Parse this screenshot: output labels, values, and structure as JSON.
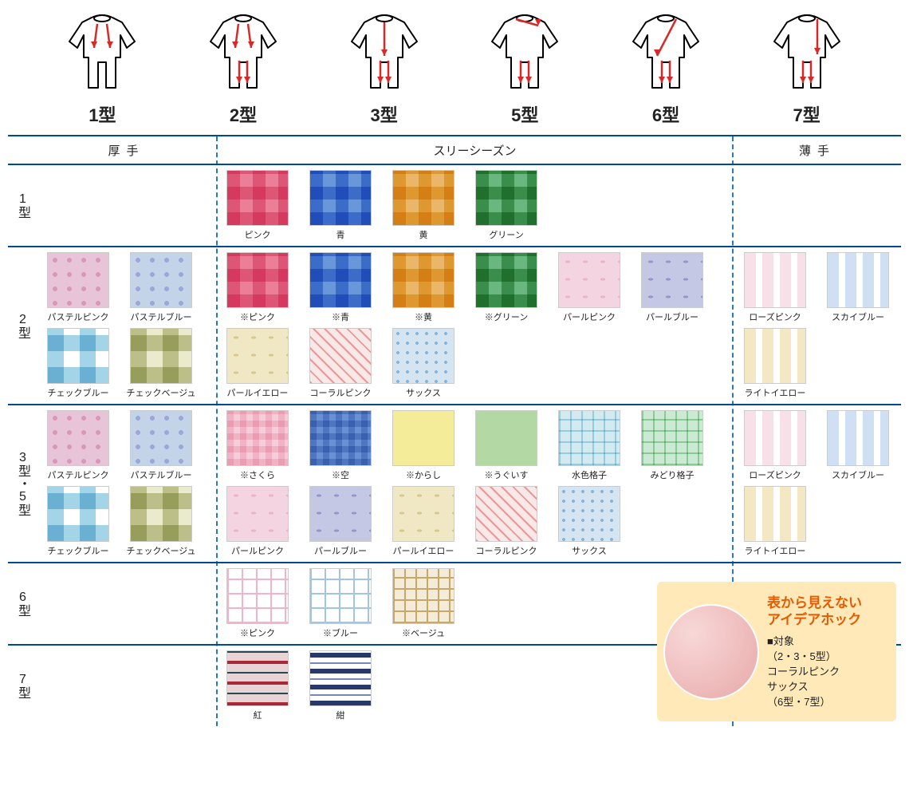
{
  "garment_types": [
    "1型",
    "2型",
    "3型",
    "5型",
    "6型",
    "7型"
  ],
  "headers": {
    "thick": "厚手",
    "three": "スリーシーズン",
    "thin": "薄手"
  },
  "rows": [
    {
      "label": "1型",
      "thick": [],
      "three": [
        {
          "label": "ピンク",
          "cls": "plaid-pink"
        },
        {
          "label": "青",
          "cls": "plaid-blue"
        },
        {
          "label": "黄",
          "cls": "plaid-yellow"
        },
        {
          "label": "グリーン",
          "cls": "plaid-green"
        }
      ],
      "thin": []
    },
    {
      "label": "2型",
      "thick": [
        {
          "label": "パステルピンク",
          "cls": "pastel-pink"
        },
        {
          "label": "パステルブルー",
          "cls": "pastel-blue"
        },
        {
          "label": "チェックブルー",
          "cls": "check-blue"
        },
        {
          "label": "チェックベージュ",
          "cls": "check-beige"
        }
      ],
      "three": [
        {
          "label": "※ピンク",
          "cls": "plaid-pink"
        },
        {
          "label": "※青",
          "cls": "plaid-blue"
        },
        {
          "label": "※黄",
          "cls": "plaid-yellow"
        },
        {
          "label": "※グリーン",
          "cls": "plaid-green"
        },
        {
          "label": "パールピンク",
          "cls": "pearl-pink"
        },
        {
          "label": "パールブルー",
          "cls": "pearl-blue"
        },
        {
          "label": "パールイエロー",
          "cls": "pearl-yellow"
        },
        {
          "label": "コーラルピンク",
          "cls": "coral-pink"
        },
        {
          "label": "サックス",
          "cls": "sax"
        }
      ],
      "thin": [
        {
          "label": "ローズピンク",
          "cls": "rose-pink"
        },
        {
          "label": "スカイブルー",
          "cls": "sky-blue"
        },
        {
          "label": "ライトイエロー",
          "cls": "light-yellow"
        }
      ]
    },
    {
      "label": "3型・5型",
      "thick": [
        {
          "label": "パステルピンク",
          "cls": "pastel-pink"
        },
        {
          "label": "パステルブルー",
          "cls": "pastel-blue"
        },
        {
          "label": "チェックブルー",
          "cls": "check-blue"
        },
        {
          "label": "チェックベージュ",
          "cls": "check-beige"
        }
      ],
      "three": [
        {
          "label": "※さくら",
          "cls": "g-sakura"
        },
        {
          "label": "※空",
          "cls": "g-sora"
        },
        {
          "label": "※からし",
          "cls": "g-karashi"
        },
        {
          "label": "※うぐいす",
          "cls": "g-uguisu"
        },
        {
          "label": "水色格子",
          "cls": "g-mizuiro"
        },
        {
          "label": "みどり格子",
          "cls": "g-midori"
        },
        {
          "label": "パールピンク",
          "cls": "pearl-pink"
        },
        {
          "label": "パールブルー",
          "cls": "pearl-blue"
        },
        {
          "label": "パールイエロー",
          "cls": "pearl-yellow"
        },
        {
          "label": "コーラルピンク",
          "cls": "coral-pink"
        },
        {
          "label": "サックス",
          "cls": "sax"
        }
      ],
      "thin": [
        {
          "label": "ローズピンク",
          "cls": "rose-pink"
        },
        {
          "label": "スカイブルー",
          "cls": "sky-blue"
        },
        {
          "label": "ライトイエロー",
          "cls": "light-yellow"
        }
      ]
    },
    {
      "label": "6型",
      "thick": [],
      "three": [
        {
          "label": "※ピンク",
          "cls": "p6-pink"
        },
        {
          "label": "※ブルー",
          "cls": "p6-blue"
        },
        {
          "label": "※ベージュ",
          "cls": "p6-beige"
        }
      ],
      "thin": []
    },
    {
      "label": "7型",
      "thick": [],
      "three": [
        {
          "label": "紅",
          "cls": "p7-kurenai"
        },
        {
          "label": "紺",
          "cls": "p7-kon"
        }
      ],
      "thin": []
    }
  ],
  "callout": {
    "title": "表から見えない\nアイデアホック",
    "lines": [
      "■対象",
      "（2・3・5型）",
      "コーラルピンク",
      "サックス",
      "（6型・7型）"
    ]
  },
  "colors": {
    "rule": "#004a8f",
    "dash": "#2a7ab8",
    "callout_bg": "#ffe9b8",
    "callout_title": "#e85a00"
  }
}
